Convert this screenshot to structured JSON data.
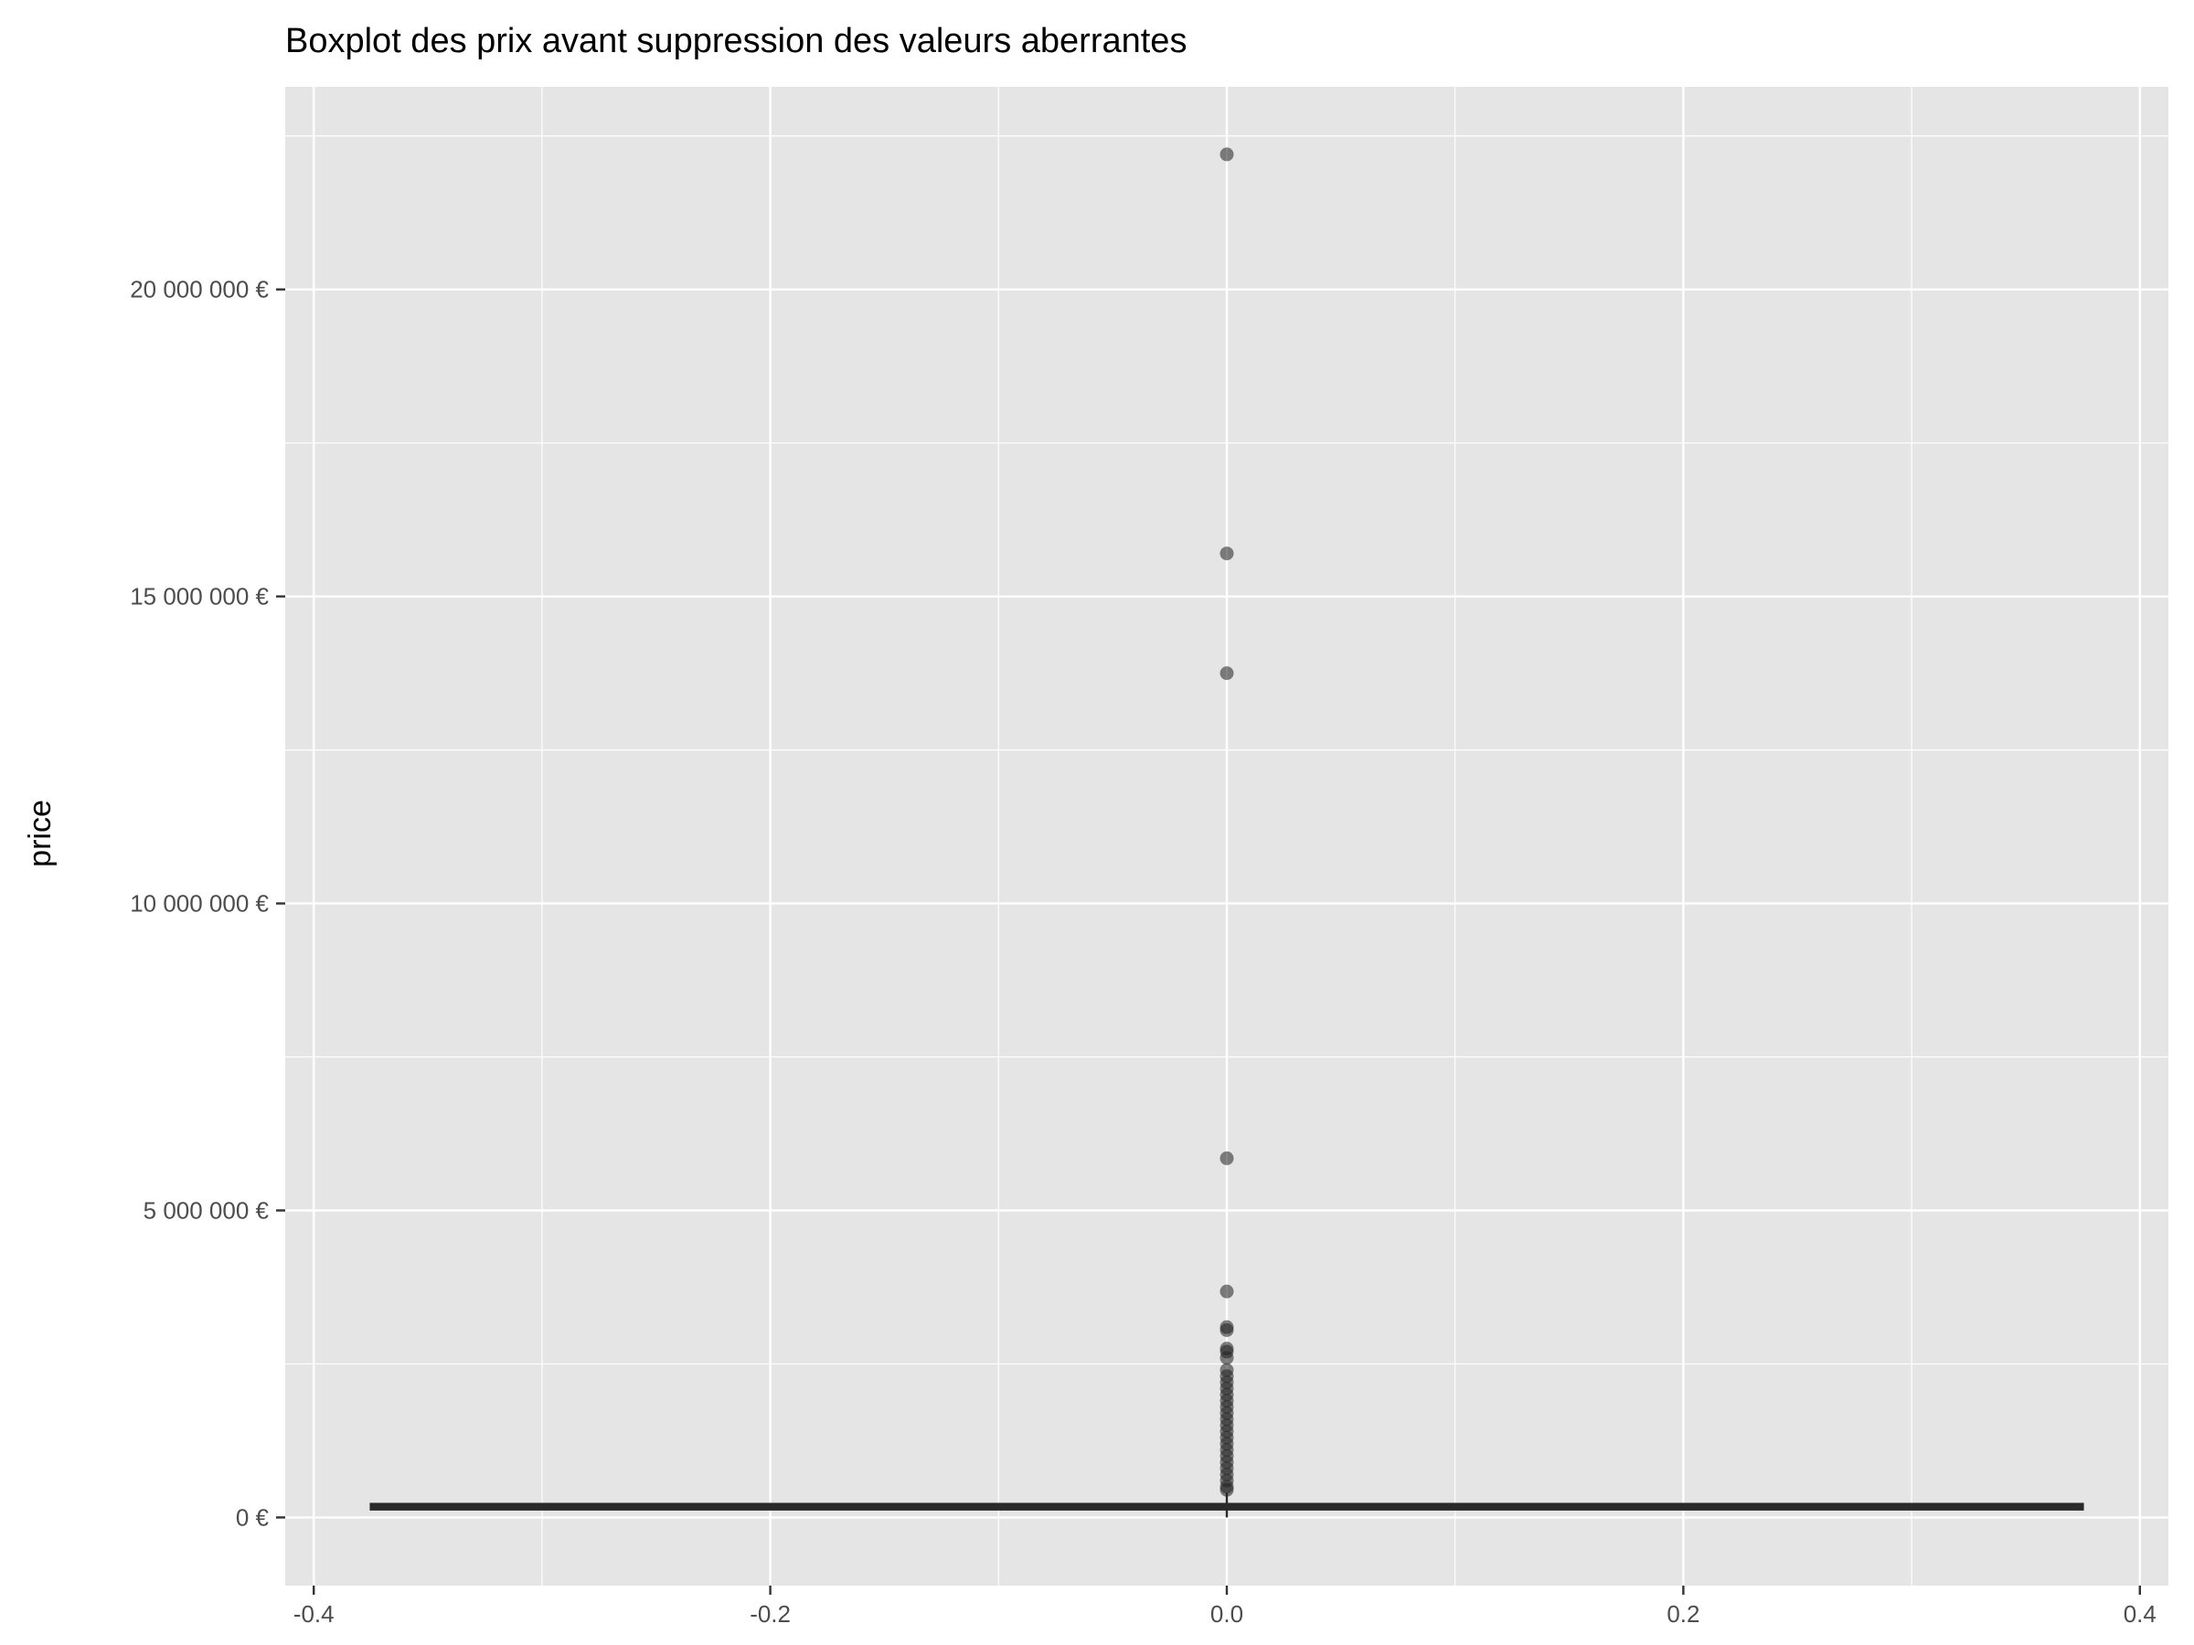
{
  "chart_data": {
    "type": "boxplot",
    "title": "Boxplot des prix avant suppression des valeurs aberrantes",
    "xlabel": "",
    "ylabel": "price",
    "x_ticks": [
      -0.4,
      -0.2,
      0.0,
      0.2,
      0.4
    ],
    "x_tick_labels": [
      "-0.4",
      "-0.2",
      "0.0",
      "0.2",
      "0.4"
    ],
    "xlim": [
      -0.4125,
      0.4125
    ],
    "y_ticks": [
      0,
      5000000,
      10000000,
      15000000,
      20000000
    ],
    "y_tick_labels": [
      "0 €",
      "5 000 000 €",
      "10 000 000 €",
      "15 000 000 €",
      "20 000 000 €"
    ],
    "ylim": [
      -1110000,
      23300000
    ],
    "box": {
      "x": 0,
      "width_extent": [
        -0.375,
        0.375
      ],
      "q1": 130000,
      "median": 170000,
      "q3": 220000,
      "whisker_low": 0,
      "whisker_high": 400000
    },
    "outliers": [
      22200000,
      15700000,
      13750000,
      5850000,
      3680000,
      3100000,
      3050000,
      2750000,
      2700000,
      2600000,
      2400000,
      2300000,
      2200000,
      2100000,
      2000000,
      1900000,
      1800000,
      1700000,
      1600000,
      1500000,
      1400000,
      1300000,
      1200000,
      1100000,
      1000000,
      900000,
      800000,
      700000,
      600000,
      500000,
      450000
    ],
    "colors": {
      "panel_background": "#e5e5e5",
      "grid": "#ffffff",
      "box_line": "#2a2a2a",
      "outlier": "#1f1f1f"
    },
    "grid": true
  }
}
